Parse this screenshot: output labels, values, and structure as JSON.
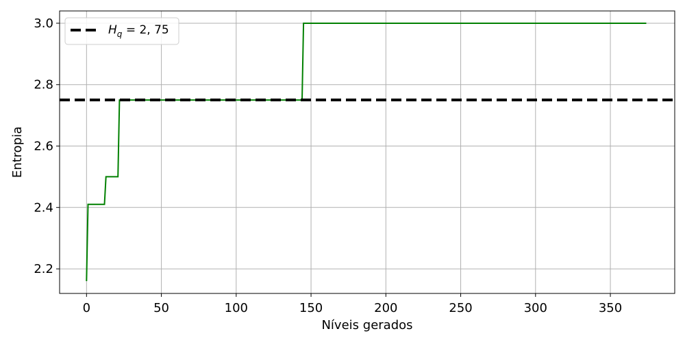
{
  "chart_data": {
    "type": "line",
    "xlabel": "Níveis gerados",
    "ylabel": "Entropia",
    "xlim": [
      -18,
      393
    ],
    "ylim": [
      2.12,
      3.04
    ],
    "xticks": [
      0,
      50,
      100,
      150,
      200,
      250,
      300,
      350
    ],
    "yticks": [
      2.2,
      2.4,
      2.6,
      2.8,
      3.0
    ],
    "xtick_labels": [
      "0",
      "50",
      "100",
      "150",
      "200",
      "250",
      "300",
      "350"
    ],
    "ytick_labels": [
      "2.2",
      "2.4",
      "2.6",
      "2.8",
      "3.0"
    ],
    "grid": true,
    "legend_position": "top-left",
    "series": [
      {
        "color": "#008000",
        "style": "solid",
        "x": [
          0,
          1,
          12,
          13,
          21,
          22,
          144,
          145,
          374
        ],
        "y": [
          2.16,
          2.41,
          2.41,
          2.5,
          2.5,
          2.75,
          2.75,
          3.0,
          3.0
        ]
      },
      {
        "name": "H_q = 2,75",
        "name_display": "H",
        "name_sub": "q",
        "name_rest": " = 2, 75",
        "color": "#000000",
        "style": "dashed",
        "hline": 2.75
      }
    ]
  }
}
